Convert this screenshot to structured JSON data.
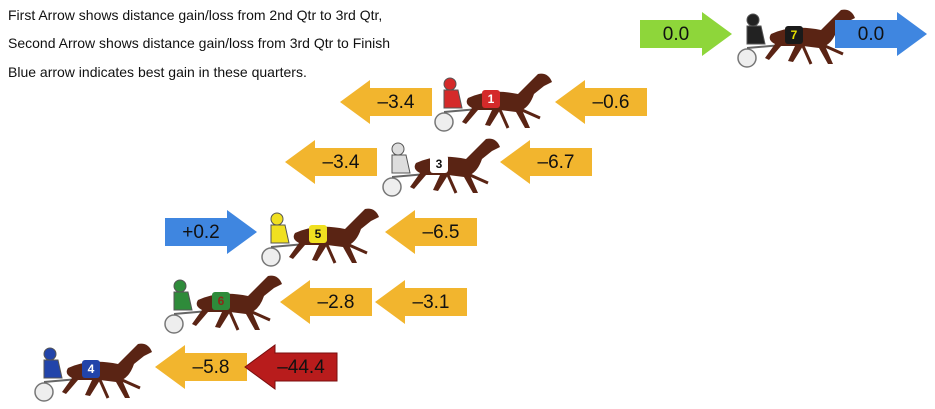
{
  "header": {
    "lines": [
      "First Arrow shows distance gain/loss from 2nd Qtr to 3rd Qtr,",
      "Second Arrow shows distance gain/loss from 3rd Qtr to Finish",
      "Blue arrow indicates best gain in these quarters."
    ]
  },
  "rows": [
    {
      "horse": "7",
      "saddle": "#1a1a1a",
      "number_color": "#e8e000",
      "driver": "#222222",
      "arrows": [
        {
          "label": "0.0",
          "direction": "right",
          "color": "#8ed63a"
        },
        {
          "label": "0.0",
          "direction": "right",
          "color": "#3f86e0"
        }
      ]
    },
    {
      "horse": "1",
      "saddle": "#d42a2a",
      "number_color": "#ffffff",
      "driver": "#d42a2a",
      "arrows": [
        {
          "label": "–3.4",
          "direction": "left",
          "color": "#f2b52e"
        },
        {
          "label": "–0.6",
          "direction": "left",
          "color": "#f2b52e"
        }
      ]
    },
    {
      "horse": "3",
      "saddle": "#ffffff",
      "number_color": "#111111",
      "driver": "#dddddd",
      "arrows": [
        {
          "label": "–3.4",
          "direction": "left",
          "color": "#f2b52e"
        },
        {
          "label": "–6.7",
          "direction": "left",
          "color": "#f2b52e"
        }
      ]
    },
    {
      "horse": "5",
      "saddle": "#f0e020",
      "number_color": "#111111",
      "driver": "#f0e020",
      "arrows": [
        {
          "label": "+0.2",
          "direction": "right",
          "color": "#3f86e0"
        },
        {
          "label": "–6.5",
          "direction": "left",
          "color": "#f2b52e"
        }
      ]
    },
    {
      "horse": "6",
      "saddle": "#2e8b3a",
      "number_color": "#8b2a1a",
      "driver": "#2e8b3a",
      "arrows": [
        {
          "label": "–2.8",
          "direction": "left",
          "color": "#f2b52e"
        },
        {
          "label": "–3.1",
          "direction": "left",
          "color": "#f2b52e"
        }
      ]
    },
    {
      "horse": "4",
      "saddle": "#2244aa",
      "number_color": "#ffffff",
      "driver": "#2244aa",
      "arrows": [
        {
          "label": "–5.8",
          "direction": "left",
          "color": "#f2b52e"
        },
        {
          "label": "–44.4",
          "direction": "left",
          "color": "#b81c1c"
        }
      ]
    }
  ]
}
